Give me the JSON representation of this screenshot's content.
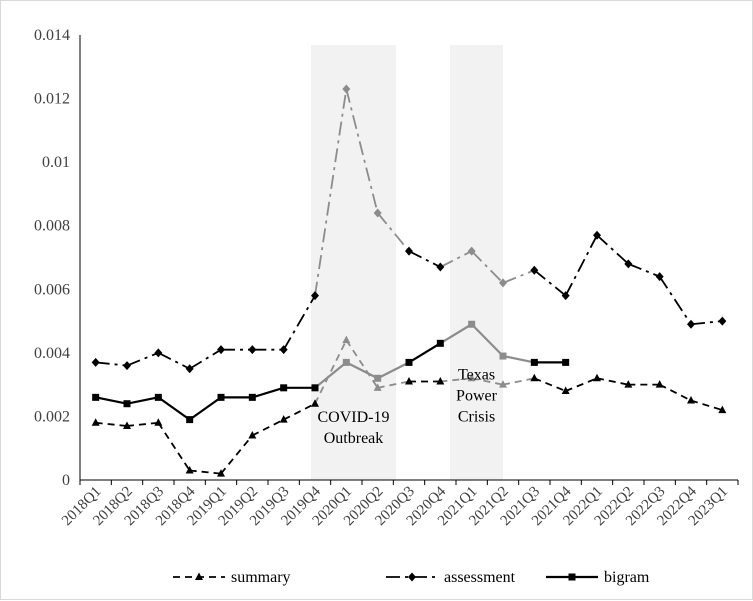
{
  "chart_data": {
    "type": "line",
    "title": "",
    "xlabel": "",
    "ylabel": "",
    "ylim": [
      0,
      0.014
    ],
    "yticks": [
      0,
      0.002,
      0.004,
      0.006,
      0.008,
      0.01,
      0.012,
      0.014
    ],
    "ytick_labels": [
      "0",
      "0.002",
      "0.004",
      "0.006",
      "0.008",
      "0.01",
      "0.012",
      "0.014"
    ],
    "grid": false,
    "legend_position": "bottom",
    "categories": [
      "2018Q1",
      "2018Q2",
      "2018Q3",
      "2018Q4",
      "2019Q1",
      "2019Q2",
      "2019Q3",
      "2019Q4",
      "2020Q1",
      "2020Q2",
      "2020Q3",
      "2020Q4",
      "2021Q1",
      "2021Q2",
      "2021Q3",
      "2021Q4",
      "2022Q1",
      "2022Q2",
      "2022Q3",
      "2022Q4",
      "2023Q1"
    ],
    "series": [
      {
        "name": "summary",
        "line_style": "dashed",
        "marker": "triangle",
        "color": "#000000",
        "values": [
          0.0018,
          0.0017,
          0.0018,
          0.0003,
          0.0002,
          0.0014,
          0.0019,
          0.0024,
          0.0044,
          0.0029,
          0.0031,
          0.0031,
          0.0032,
          0.003,
          0.0032,
          0.0028,
          0.0032,
          0.003,
          0.003,
          0.0025,
          0.0022
        ]
      },
      {
        "name": "assessment",
        "line_style": "dash-dot",
        "marker": "diamond",
        "color": "#000000",
        "values": [
          0.0037,
          0.0036,
          0.004,
          0.0035,
          0.0041,
          0.0041,
          0.0041,
          0.0058,
          0.0123,
          0.0084,
          0.0072,
          0.0067,
          0.0072,
          0.0062,
          0.0066,
          0.0058,
          0.0077,
          0.0068,
          0.0064,
          0.0049,
          0.005
        ]
      },
      {
        "name": "bigram",
        "line_style": "solid",
        "marker": "square",
        "color": "#000000",
        "values": [
          0.0026,
          0.0024,
          0.0026,
          0.0019,
          0.0026,
          0.0026,
          0.0029,
          0.0029,
          0.0037,
          0.0032,
          0.0037,
          0.0043,
          0.0049,
          0.0039,
          0.0037,
          0.0037,
          null,
          null,
          null,
          null,
          null
        ]
      }
    ],
    "annotations": [
      {
        "name": "covid",
        "lines": [
          "COVID-19",
          "Outbreak"
        ],
        "span": [
          "2019Q4",
          "2020Q2"
        ],
        "label_y": 0.0015
      },
      {
        "name": "texas",
        "lines": [
          "Texas",
          "Power",
          "Crisis"
        ],
        "span": [
          "2020Q4",
          "2021Q2"
        ],
        "label_y": 0.0025
      }
    ],
    "highlight_color": "#f2f2f2",
    "highlight_line_color": "#8c8c8c"
  }
}
